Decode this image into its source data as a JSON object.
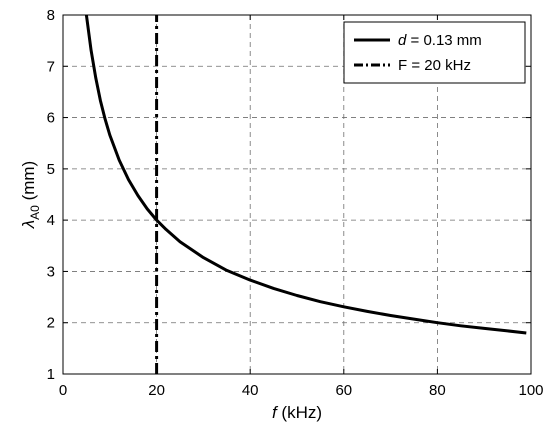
{
  "chart_data": {
    "type": "line",
    "title": "",
    "xlabel_italic": "f",
    "xlabel_rest": " (kHz)",
    "ylabel_main": "λ",
    "ylabel_sub": "A0",
    "ylabel_rest": " (mm)",
    "xlim": [
      0,
      100
    ],
    "ylim": [
      1,
      8
    ],
    "xticks": [
      0,
      20,
      40,
      60,
      80,
      100
    ],
    "yticks": [
      1,
      2,
      3,
      4,
      5,
      6,
      7,
      8
    ],
    "grid": true,
    "legend_position": "top-right",
    "series": [
      {
        "legend_italic": "d",
        "legend_rest": " = 0.13 mm",
        "style": "solid",
        "color": "#000000",
        "x": [
          5,
          6,
          7,
          8,
          9,
          10,
          12,
          14,
          16,
          18,
          20,
          22,
          25,
          30,
          35,
          40,
          45,
          50,
          55,
          60,
          65,
          70,
          75,
          80,
          85,
          90,
          95,
          99
        ],
        "y": [
          8.0,
          7.31,
          6.77,
          6.33,
          5.97,
          5.66,
          5.17,
          4.79,
          4.48,
          4.22,
          4.0,
          3.82,
          3.58,
          3.27,
          3.02,
          2.83,
          2.67,
          2.53,
          2.41,
          2.31,
          2.22,
          2.14,
          2.07,
          2.0,
          1.94,
          1.89,
          1.84,
          1.8
        ]
      },
      {
        "legend_text": "F = 20 kHz",
        "style": "dashdot",
        "color": "#000000",
        "x": [
          20,
          20
        ],
        "y": [
          1,
          8
        ]
      }
    ]
  }
}
